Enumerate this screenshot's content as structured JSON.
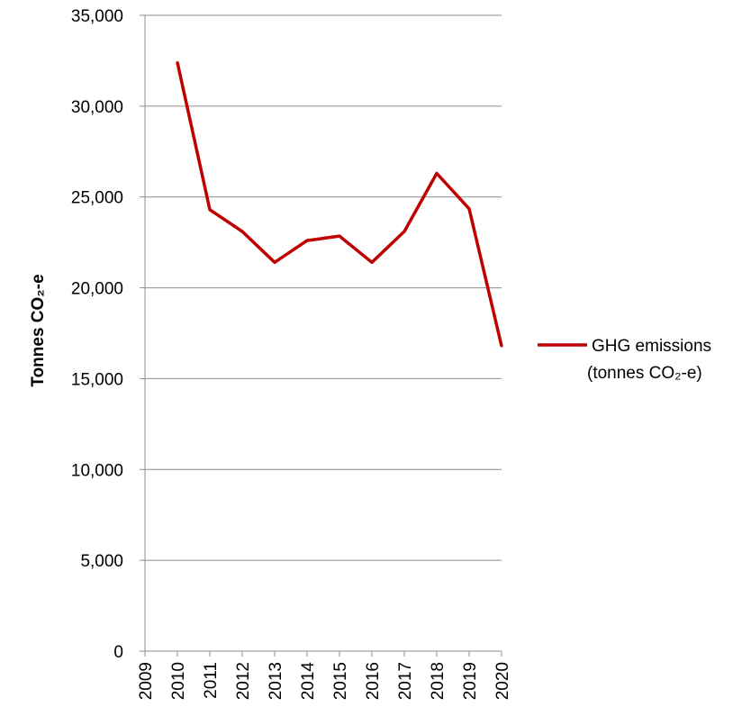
{
  "chart_data": {
    "type": "line",
    "x": [
      "2009",
      "2010",
      "2011",
      "2012",
      "2013",
      "2014",
      "2015",
      "2016",
      "2017",
      "2018",
      "2019",
      "2020"
    ],
    "series": [
      {
        "name": "GHG emissions (tonnes CO₂-e)",
        "name_lines": [
          "GHG emissions",
          "(tonnes CO₂-e)"
        ],
        "color": "#C00000",
        "values": [
          null,
          32400,
          24300,
          23100,
          21400,
          22600,
          22850,
          21400,
          23100,
          26300,
          24350,
          16800
        ]
      }
    ],
    "ylabel": "Tonnes CO₂-e",
    "ylim": [
      0,
      35000
    ],
    "y_ticks": [
      0,
      5000,
      10000,
      15000,
      20000,
      25000,
      30000,
      35000
    ],
    "y_tick_labels": [
      "0",
      "5,000",
      "10,000",
      "15,000",
      "20,000",
      "25,000",
      "30,000",
      "35,000"
    ],
    "grid": true,
    "legend_position": "right"
  }
}
